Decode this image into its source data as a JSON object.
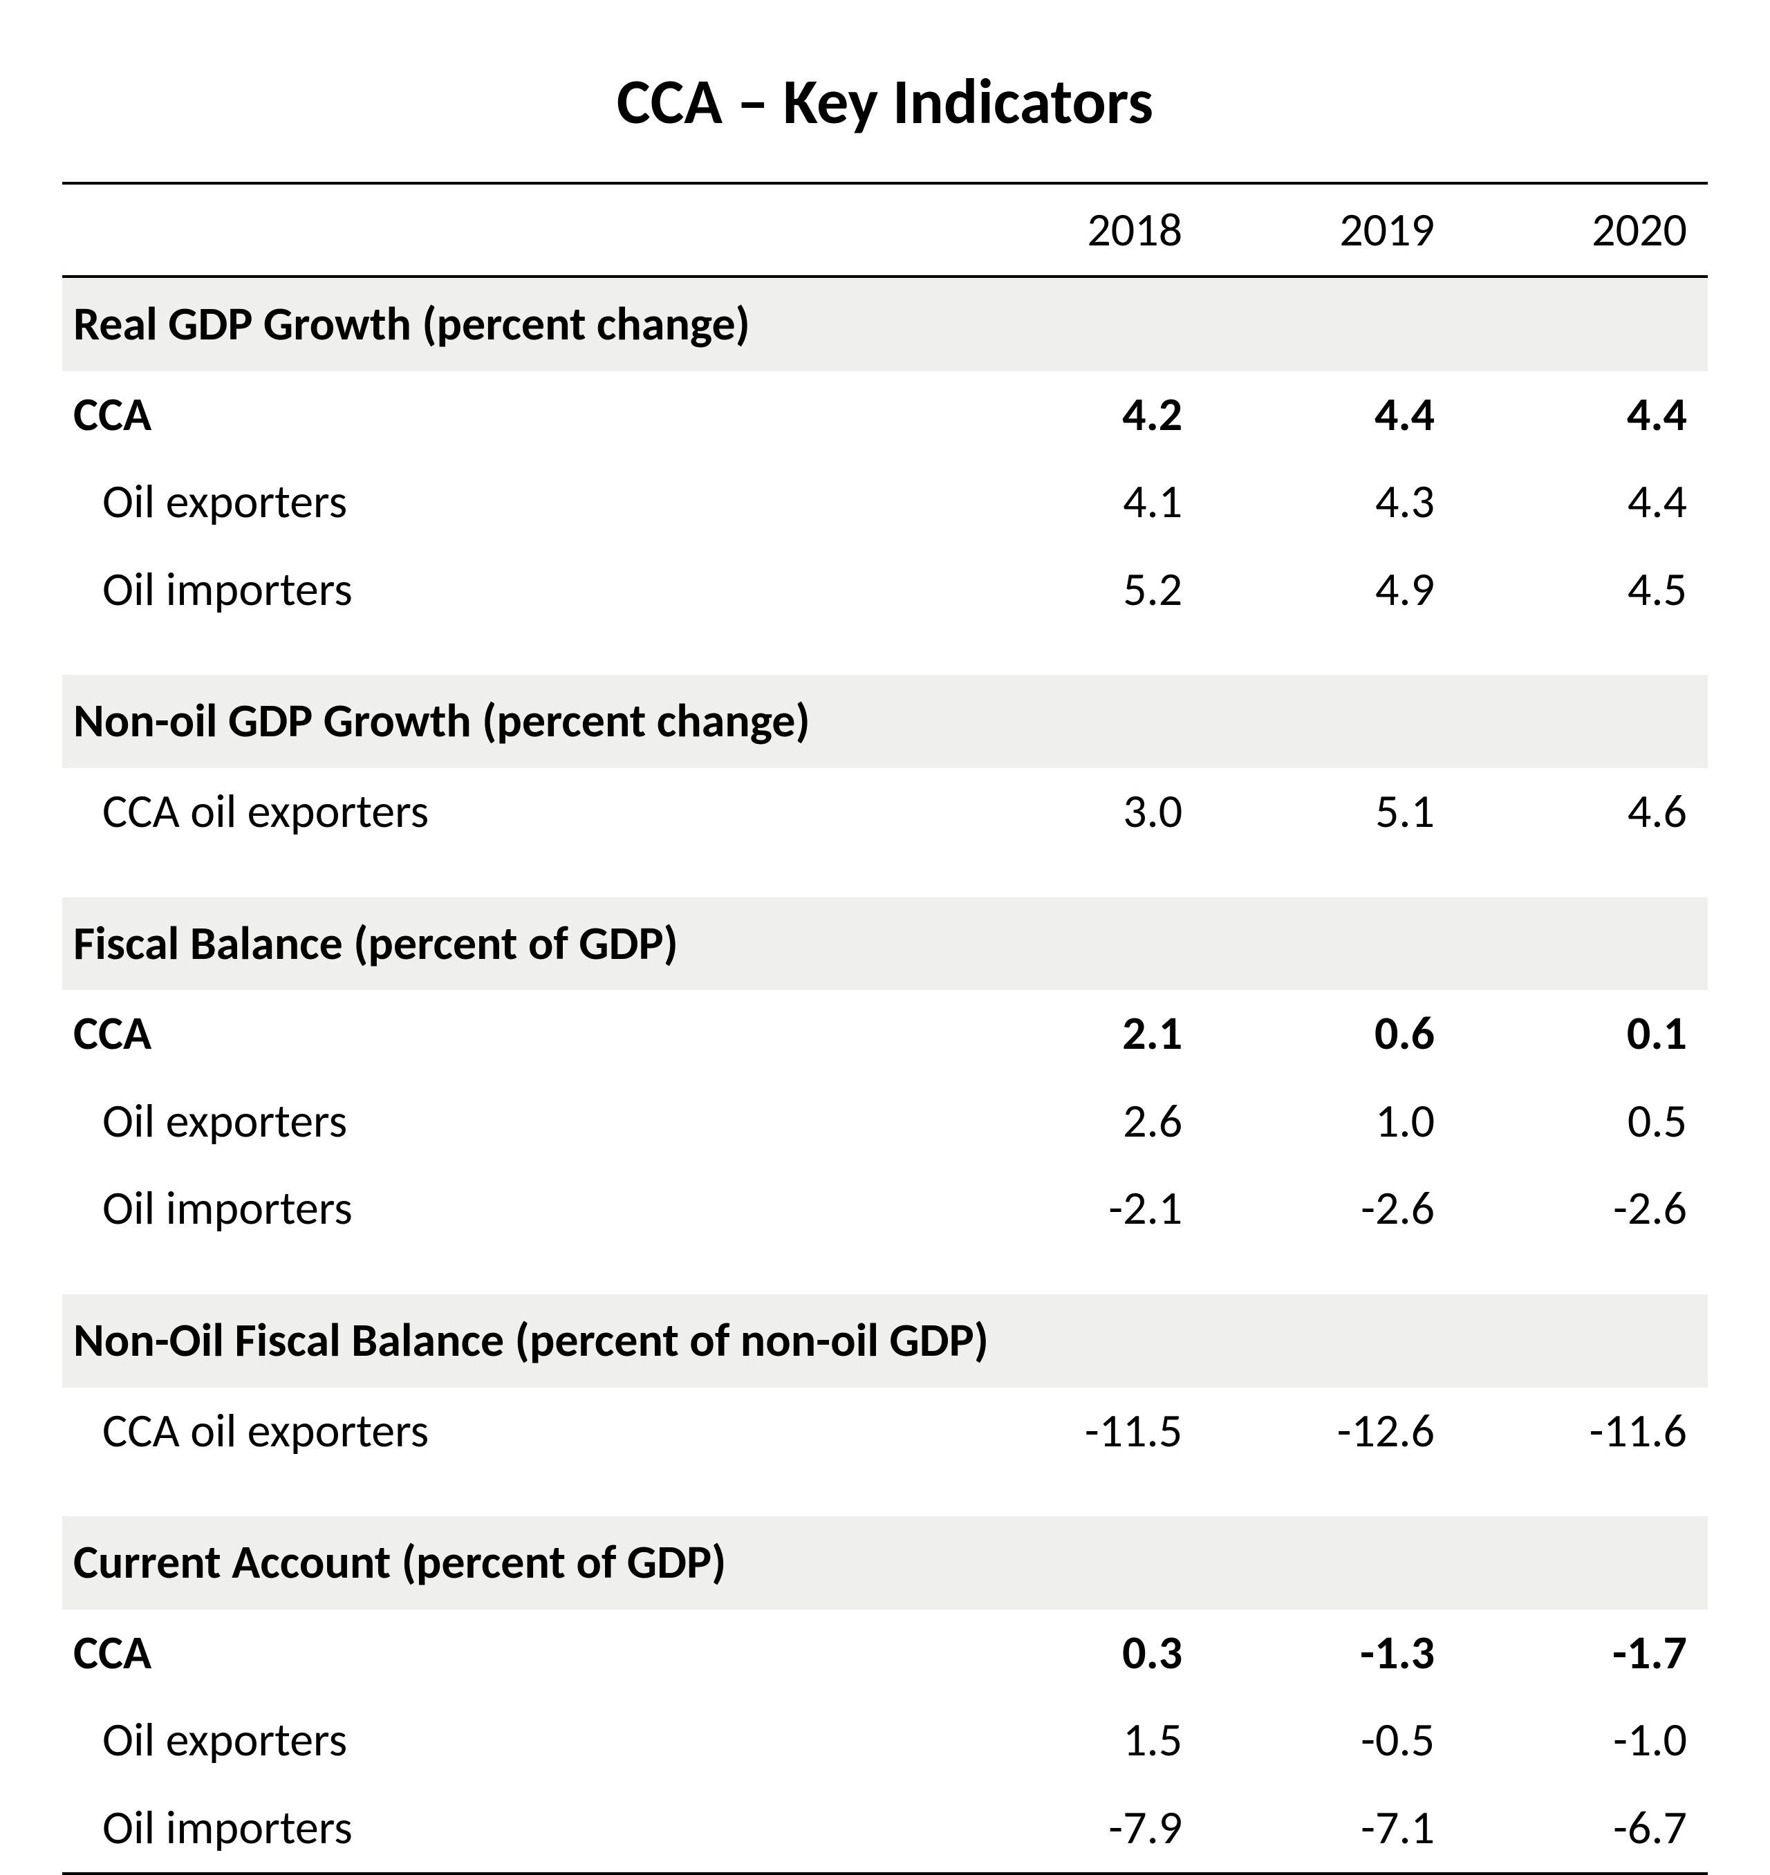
{
  "title": "CCA – Key Indicators",
  "columns": [
    "2018",
    "2019",
    "2020"
  ],
  "table": {
    "col_widths_pct": [
      54,
      15.33,
      15.33,
      15.33
    ],
    "section_bg": "#efefed",
    "rule_color": "#000000",
    "font_family": "Calibri",
    "title_fontsize_pt": 46,
    "body_fontsize_pt": 34
  },
  "sections": [
    {
      "heading": "Real GDP Growth (percent change)",
      "rows": [
        {
          "label": "CCA",
          "bold": true,
          "indent": false,
          "values": [
            "4.2",
            "4.4",
            "4.4"
          ]
        },
        {
          "label": "Oil exporters",
          "bold": false,
          "indent": true,
          "values": [
            "4.1",
            "4.3",
            "4.4"
          ]
        },
        {
          "label": "Oil importers",
          "bold": false,
          "indent": true,
          "values": [
            "5.2",
            "4.9",
            "4.5"
          ]
        }
      ]
    },
    {
      "heading": "Non-oil GDP Growth (percent change)",
      "rows": [
        {
          "label": "CCA oil exporters",
          "bold": false,
          "indent": true,
          "values": [
            "3.0",
            "5.1",
            "4.6"
          ]
        }
      ]
    },
    {
      "heading": "Fiscal Balance (percent of GDP)",
      "rows": [
        {
          "label": "CCA",
          "bold": true,
          "indent": false,
          "values": [
            "2.1",
            "0.6",
            "0.1"
          ]
        },
        {
          "label": "Oil exporters",
          "bold": false,
          "indent": true,
          "values": [
            "2.6",
            "1.0",
            "0.5"
          ]
        },
        {
          "label": "Oil importers",
          "bold": false,
          "indent": true,
          "values": [
            "-2.1",
            "-2.6",
            "-2.6"
          ]
        }
      ]
    },
    {
      "heading": "Non-Oil Fiscal Balance (percent of non-oil GDP)",
      "rows": [
        {
          "label": "CCA oil exporters",
          "bold": false,
          "indent": true,
          "values": [
            "-11.5",
            "-12.6",
            "-11.6"
          ]
        }
      ]
    },
    {
      "heading": "Current Account (percent of GDP)",
      "rows": [
        {
          "label": "CCA",
          "bold": true,
          "indent": false,
          "values": [
            "0.3",
            "-1.3",
            "-1.7"
          ]
        },
        {
          "label": "Oil exporters",
          "bold": false,
          "indent": true,
          "values": [
            "1.5",
            "-0.5",
            "-1.0"
          ]
        },
        {
          "label": "Oil importers",
          "bold": false,
          "indent": true,
          "values": [
            "-7.9",
            "-7.1",
            "-6.7"
          ]
        }
      ]
    }
  ]
}
